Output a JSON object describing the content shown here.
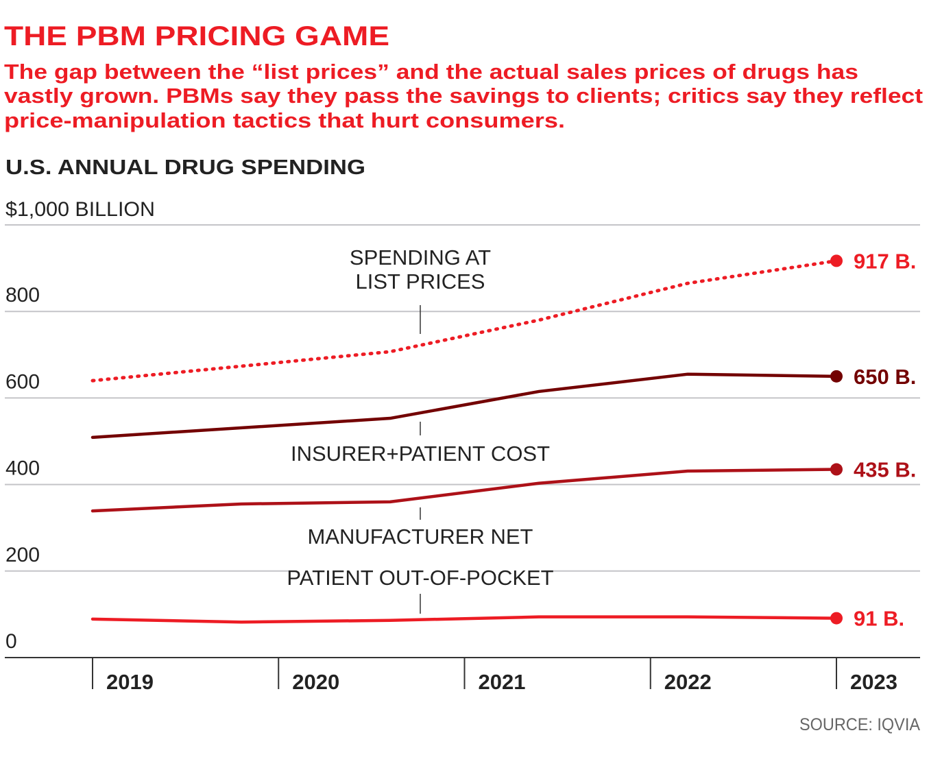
{
  "header": {
    "title": "THE PBM PRICING GAME",
    "subtitle_lines": [
      "The gap between the “list prices” and the actual sales prices of drugs has",
      "vastly grown. PBMs say they pass the savings to clients; critics say they reflect",
      "price-manipulation tactics that hurt consumers."
    ]
  },
  "chart_data": {
    "type": "line",
    "title": "U.S. ANNUAL DRUG SPENDING",
    "ylabel": "$1,000 BILLION",
    "ylim": [
      0,
      1000
    ],
    "yticks": [
      0,
      200,
      400,
      600,
      800
    ],
    "ytick_labels": [
      "0",
      "200",
      "400",
      "600",
      "800"
    ],
    "xlim": [
      2019,
      2023
    ],
    "xticks": [
      "2019",
      "2020",
      "2021",
      "2022",
      "2023"
    ],
    "grid": true,
    "series": [
      {
        "name": "SPENDING AT LIST PRICES",
        "label_lines": [
          "SPENDING AT",
          "LIST PRICES"
        ],
        "end_label": "917 B.",
        "color": "#ed1c24",
        "style": "dotted",
        "x": [
          2019,
          2020.6,
          2021.4,
          2022.2,
          2023
        ],
        "values": [
          640,
          707,
          780,
          865,
          917
        ]
      },
      {
        "name": "INSURER+PATIENT COST",
        "label_lines": [
          "INSURER+PATIENT COST"
        ],
        "end_label": "650 B.",
        "color": "#730000",
        "style": "solid",
        "x": [
          2019,
          2020.6,
          2021.4,
          2022.2,
          2023
        ],
        "values": [
          509,
          553,
          615,
          655,
          650
        ]
      },
      {
        "name": "MANUFACTURER NET",
        "label_lines": [
          "MANUFACTURER NET"
        ],
        "end_label": "435 B.",
        "color": "#ad1118",
        "style": "solid",
        "x": [
          2019,
          2019.8,
          2020.6,
          2021.4,
          2022.2,
          2023
        ],
        "values": [
          339,
          355,
          360,
          403,
          431,
          435
        ]
      },
      {
        "name": "PATIENT OUT-OF-POCKET",
        "label_lines": [
          "PATIENT OUT-OF-POCKET"
        ],
        "end_label": "91 B.",
        "color": "#ed1c24",
        "style": "solid",
        "x": [
          2019,
          2019.8,
          2020.6,
          2021.4,
          2022.2,
          2023
        ],
        "values": [
          89,
          82,
          86,
          94,
          94,
          91
        ]
      }
    ],
    "source": "SOURCE: IQVIA"
  }
}
